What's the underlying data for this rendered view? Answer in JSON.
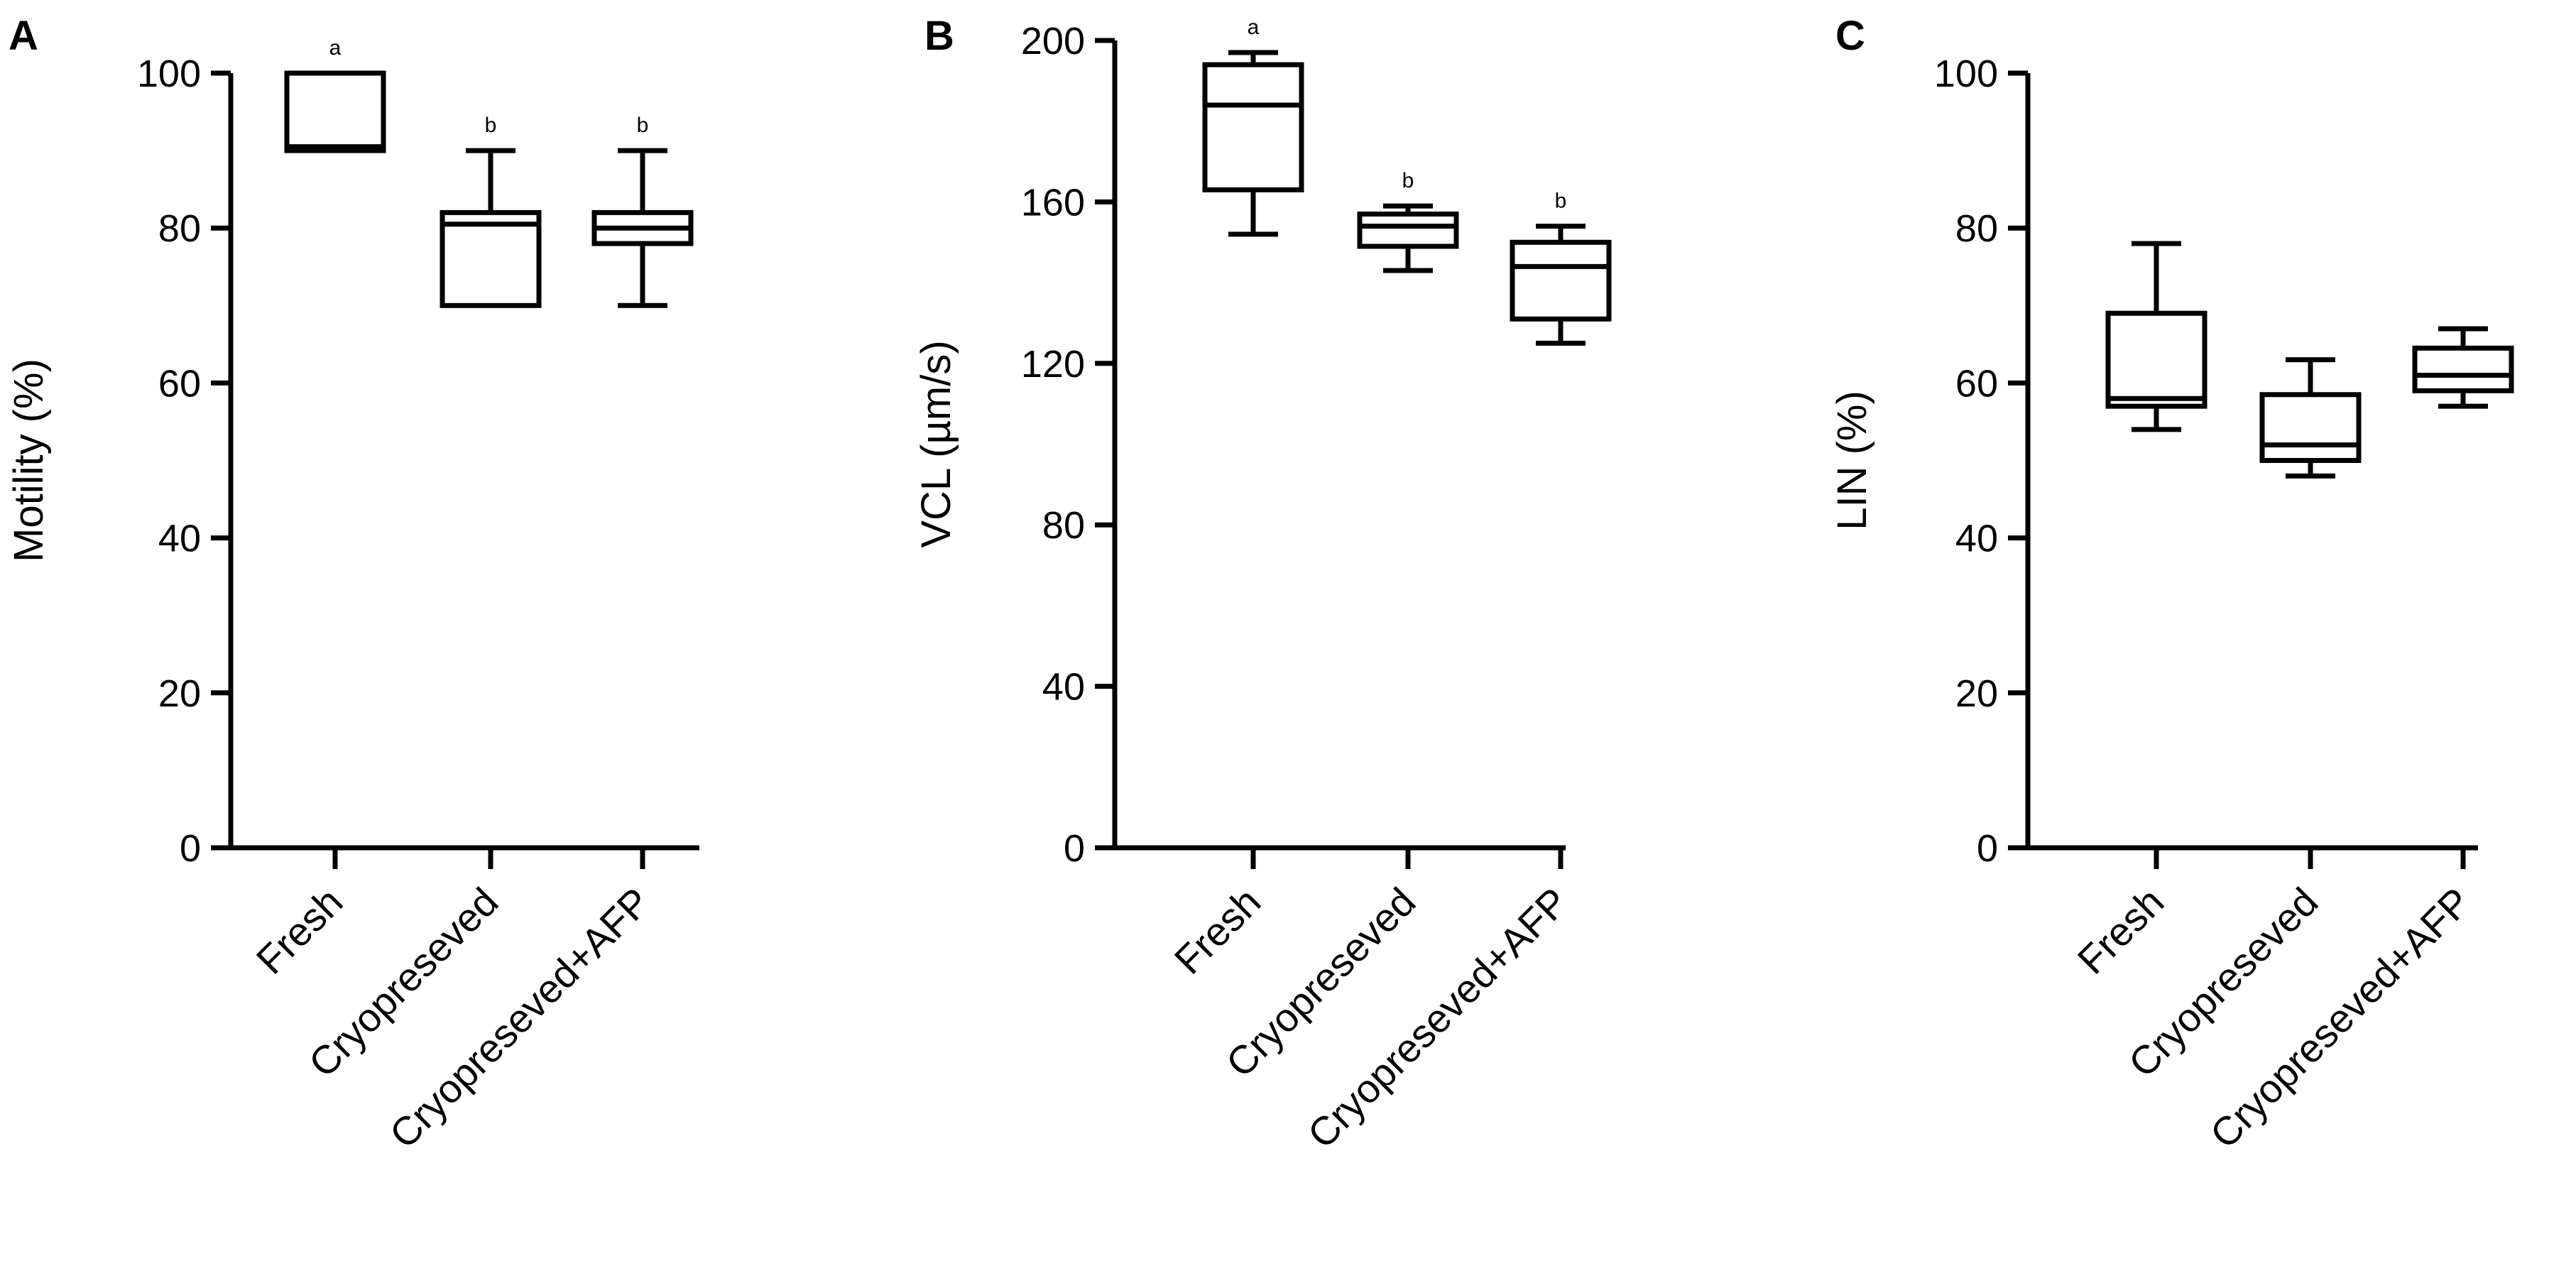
{
  "chart_data": [
    {
      "type": "box",
      "panel": "A",
      "ylabel": "Motility (%)",
      "ylim": [
        0,
        100
      ],
      "yticks": [
        "0",
        "20",
        "40",
        "60",
        "80",
        "100"
      ],
      "categories": [
        "Fresh",
        "Cryopreseved",
        "Cryopreseved+AFP"
      ],
      "boxes": [
        {
          "min": 90,
          "q1": 90,
          "median": 90.5,
          "q3": 100,
          "max": 100
        },
        {
          "min": 70,
          "q1": 70,
          "median": 80.5,
          "q3": 82,
          "max": 90
        },
        {
          "min": 70,
          "q1": 78,
          "median": 80,
          "q3": 82,
          "max": 90
        }
      ],
      "significance": [
        "a",
        "b",
        "b"
      ]
    },
    {
      "type": "box",
      "panel": "B",
      "ylabel": "VCL (µm/s)",
      "ylim": [
        0,
        200
      ],
      "yticks": [
        "0",
        "40",
        "80",
        "120",
        "160",
        "200"
      ],
      "categories": [
        "Fresh",
        "Cryopreseved",
        "Cryopreseved+AFP"
      ],
      "boxes": [
        {
          "min": 152,
          "q1": 163,
          "median": 184,
          "q3": 194,
          "max": 197
        },
        {
          "min": 143,
          "q1": 149,
          "median": 154,
          "q3": 157,
          "max": 159
        },
        {
          "min": 125,
          "q1": 131,
          "median": 144,
          "q3": 150,
          "max": 154
        }
      ],
      "significance": [
        "a",
        "b",
        "b"
      ]
    },
    {
      "type": "box",
      "panel": "C",
      "ylabel": "LIN (%)",
      "ylim": [
        0,
        100
      ],
      "yticks": [
        "0",
        "20",
        "40",
        "60",
        "80",
        "100"
      ],
      "categories": [
        "Fresh",
        "Cryopreseved",
        "Cryopreseved+AFP"
      ],
      "boxes": [
        {
          "min": 54,
          "q1": 57,
          "median": 58,
          "q3": 69,
          "max": 78
        },
        {
          "min": 48,
          "q1": 50,
          "median": 52,
          "q3": 58.5,
          "max": 63
        },
        {
          "min": 57,
          "q1": 59,
          "median": 61,
          "q3": 64.5,
          "max": 67
        }
      ],
      "significance": [
        "",
        "",
        ""
      ]
    }
  ]
}
